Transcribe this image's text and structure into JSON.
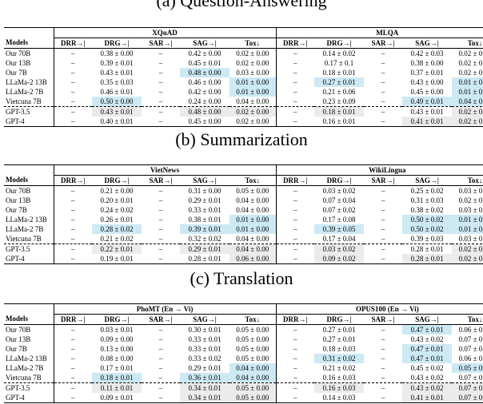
{
  "headers": [
    "Models",
    "DRR→|",
    "DRG→|",
    "SAR→|",
    "SAG→|",
    "Tox↓"
  ],
  "sections": [
    {
      "title": "(a) Question-Answering",
      "datasets": [
        "XQuAD",
        "MLQA"
      ],
      "rows": [
        {
          "model": "Our 70B",
          "cells": [
            "–",
            "0.38 ± 0.00",
            "–",
            "0.42 ± 0.00",
            "0.02 ± 0.00",
            "–",
            "0.14 ± 0.02",
            "–",
            "0.42 ± 0.03",
            "0.02 ± 0.00"
          ]
        },
        {
          "model": "Our 13B",
          "cells": [
            "–",
            "0.39 ± 0.01",
            "–",
            "0.45 ± 0.01",
            "0.02 ± 0.00",
            "–",
            "0.17 ± 0.1",
            "–",
            "0.38 ± 0.00",
            "0.02 ± 0.00"
          ]
        },
        {
          "model": "Our 7B",
          "cells": [
            "–",
            "0.43 ± 0.01",
            "–",
            "0.48 ± 0.00",
            "0.03 ± 0.00",
            "–",
            "0.18 ± 0.01",
            "–",
            "0.37 ± 0.01",
            "0.02 ± 0.00"
          ]
        },
        {
          "model": "LLaMa-2 13B",
          "cells": [
            "–",
            "0.35 ± 0.03",
            "–",
            "0.46 ± 0.00",
            "0.01 ± 0.00",
            "–",
            "0.27 ± 0.01",
            "–",
            "0.43 ± 0.00",
            "0.01 ± 0.00"
          ]
        },
        {
          "model": "LLaMa-2 7B",
          "cells": [
            "–",
            "0.46 ± 0.01",
            "–",
            "0.42 ± 0.00",
            "0.01 ± 0.00",
            "–",
            "0.21 ± 0.06",
            "–",
            "0.45 ± 0.00",
            "0.01 ± 0.00"
          ]
        },
        {
          "model": "Vietcuna 7B",
          "cells": [
            "–",
            "0.50 ± 0.00",
            "–",
            "0.24 ± 0.00",
            "0.04 ± 0.00",
            "–",
            "0.23 ± 0.09",
            "–",
            "0.49 ± 0.01",
            "0.04 ± 0.00"
          ]
        },
        {
          "model": "GPT-3.5",
          "cells": [
            "–",
            "0.43 ± 0.01",
            "–",
            "0.48 ± 0.00",
            "0.02 ± 0.00",
            "–",
            "0.18 ± 0.01",
            "–",
            "0.43 ± 0.01",
            "0.02 ± 0.00"
          ]
        },
        {
          "model": "GPT-4",
          "cells": [
            "–",
            "0.40 ± 0.01",
            "–",
            "0.45 ± 0.00",
            "0.02 ± 0.00",
            "–",
            "0.16 ± 0.01",
            "–",
            "0.41 ± 0.01",
            "0.02 ± 0.00"
          ]
        }
      ],
      "highlight": [
        [
          2,
          "hl3"
        ],
        [
          3,
          "hl4"
        ],
        [
          3,
          "hl9"
        ],
        [
          4,
          "hl4"
        ],
        [
          4,
          "hl9"
        ],
        [
          5,
          "hl1"
        ],
        [
          5,
          "hl8"
        ],
        [
          5,
          "hl9"
        ],
        [
          3,
          "hl6"
        ],
        [
          6,
          "gr1"
        ],
        [
          6,
          "gr3"
        ],
        [
          6,
          "gr4"
        ],
        [
          6,
          "gr6"
        ],
        [
          6,
          "gr9"
        ],
        [
          7,
          "gr8"
        ],
        [
          7,
          "gr9"
        ]
      ]
    },
    {
      "title": "(b) Summarization",
      "datasets": [
        "VietNews",
        "WikiLingua"
      ],
      "rows": [
        {
          "model": "Our 70B",
          "cells": [
            "–",
            "0.21 ± 0.00",
            "–",
            "0.31 ± 0.00",
            "0.05 ± 0.00",
            "–",
            "0.03 ± 0.02",
            "–",
            "0.25 ± 0.02",
            "0.03 ± 0.00"
          ]
        },
        {
          "model": "Our 13B",
          "cells": [
            "–",
            "0.20 ± 0.01",
            "–",
            "0.29 ± 0.01",
            "0.04 ± 0.00",
            "–",
            "0.07 ± 0.04",
            "–",
            "0.31 ± 0.03",
            "0.02 ± 0.00"
          ]
        },
        {
          "model": "Our 7B",
          "cells": [
            "–",
            "0.24 ± 0.02",
            "–",
            "0.33 ± 0.01",
            "0.04 ± 0.00",
            "–",
            "0.07 ± 0.02",
            "–",
            "0.38 ± 0.02",
            "0.03 ± 0.00"
          ]
        },
        {
          "model": "LLaMa-2 13B",
          "cells": [
            "–",
            "0.26 ± 0.01",
            "–",
            "0.38 ± 0.01",
            "0.01 ± 0.00",
            "–",
            "0.17 ± 0.08",
            "–",
            "0.50 ± 0.02",
            "0.01 ± 0.00"
          ]
        },
        {
          "model": "LLaMa-2 7B",
          "cells": [
            "–",
            "0.28 ± 0.02",
            "–",
            "0.39 ± 0.01",
            "0.01 ± 0.00",
            "–",
            "0.39 ± 0.05",
            "–",
            "0.50 ± 0.02",
            "0.01 ± 0.00"
          ]
        },
        {
          "model": "Vietcuna 7B",
          "cells": [
            "–",
            "0.21 ± 0.02",
            "–",
            "0.32 ± 0.02",
            "0.04 ± 0.00",
            "–",
            "0.17 ± 0.04",
            "–",
            "0.39 ± 0.03",
            "0.03 ± 0.00"
          ]
        },
        {
          "model": "GPT-3.5",
          "cells": [
            "–",
            "0.22 ± 0.01",
            "–",
            "0.29 ± 0.01",
            "0.04 ± 0.00",
            "–",
            "0.03 ± 0.02",
            "–",
            "0.28 ± 0.01",
            "0.02 ± 0.00"
          ]
        },
        {
          "model": "GPT-4",
          "cells": [
            "–",
            "0.19 ± 0.01",
            "–",
            "0.28 ± 0.01",
            "0.06 ± 0.00",
            "–",
            "0.09 ± 0.02",
            "–",
            "0.28 ± 0.01",
            "0.02 ± 0.00"
          ]
        }
      ],
      "highlight": [
        [
          3,
          "hl4"
        ],
        [
          3,
          "hl8"
        ],
        [
          3,
          "hl9"
        ],
        [
          4,
          "hl1"
        ],
        [
          4,
          "hl3"
        ],
        [
          4,
          "hl4"
        ],
        [
          4,
          "hl6"
        ],
        [
          4,
          "hl8"
        ],
        [
          4,
          "hl9"
        ],
        [
          6,
          "gr1"
        ],
        [
          6,
          "gr3"
        ],
        [
          6,
          "gr4"
        ],
        [
          6,
          "gr6"
        ],
        [
          6,
          "gr9"
        ],
        [
          7,
          "gr4"
        ],
        [
          7,
          "gr6"
        ],
        [
          7,
          "gr8"
        ],
        [
          7,
          "gr9"
        ]
      ]
    },
    {
      "title": "(c) Translation",
      "datasets": [
        "PhoMT (En → Vi)",
        "OPUS100 (En → Vi)"
      ],
      "rows": [
        {
          "model": "Our 70B",
          "cells": [
            "–",
            "0.03 ± 0.01",
            "–",
            "0.30 ± 0.01",
            "0.05 ± 0.00",
            "–",
            "0.27 ± 0.01",
            "–",
            "0.47 ± 0.01",
            "0.06 ± 0.00"
          ]
        },
        {
          "model": "Our 13B",
          "cells": [
            "–",
            "0.09 ± 0.00",
            "–",
            "0.33 ± 0.01",
            "0.05 ± 0.00",
            "–",
            "0.27 ± 0.01",
            "–",
            "0.43 ± 0.02",
            "0.07 ± 0.00"
          ]
        },
        {
          "model": "Our 7B",
          "cells": [
            "–",
            "0.13 ± 0.00",
            "–",
            "0.33 ± 0.01",
            "0.05 ± 0.00",
            "–",
            "0.18 ± 0.03",
            "–",
            "0.47 ± 0.01",
            "0.07 ± 0.00"
          ]
        },
        {
          "model": "LLaMa-2 13B",
          "cells": [
            "–",
            "0.08 ± 0.00",
            "–",
            "0.33 ± 0.02",
            "0.05 ± 0.00",
            "–",
            "0.31 ± 0.02",
            "–",
            "0.47 ± 0.01",
            "0.06 ± 0.00"
          ]
        },
        {
          "model": "LLaMa-2 7B",
          "cells": [
            "–",
            "0.17 ± 0.01",
            "–",
            "0.29 ± 0.01",
            "0.04 ± 0.00",
            "–",
            "0.21 ± 0.02",
            "–",
            "0.45 ± 0.02",
            "0.05 ± 0.00"
          ]
        },
        {
          "model": "Vietcuna 7B",
          "cells": [
            "–",
            "0.18 ± 0.01",
            "–",
            "0.36 ± 0.01",
            "0.04 ± 0.00",
            "–",
            "0.16 ± 0.03",
            "–",
            "0.43 ± 0.02",
            "0.07 ± 0.00"
          ]
        },
        {
          "model": "GPT-3.5",
          "cells": [
            "–",
            "0.11 ± 0.01",
            "–",
            "0.34 ± 0.01",
            "0.05 ± 0.00",
            "–",
            "0.16 ± 0.03",
            "–",
            "0.43 ± 0.02",
            "0.07 ± 0.00"
          ]
        },
        {
          "model": "GPT-4",
          "cells": [
            "–",
            "0.09 ± 0.01",
            "–",
            "0.34 ± 0.01",
            "0.05 ± 0.00",
            "–",
            "0.14 ± 0.03",
            "–",
            "0.41 ± 0.01",
            "0.07 ± 0.00"
          ]
        }
      ],
      "highlight": [
        [
          0,
          "hl8"
        ],
        [
          2,
          "hl8"
        ],
        [
          3,
          "hl6"
        ],
        [
          3,
          "hl8"
        ],
        [
          4,
          "hl4"
        ],
        [
          4,
          "hl9"
        ],
        [
          5,
          "hl1"
        ],
        [
          5,
          "hl3"
        ],
        [
          5,
          "hl4"
        ],
        [
          6,
          "gr1"
        ],
        [
          6,
          "gr3"
        ],
        [
          6,
          "gr4"
        ],
        [
          6,
          "gr6"
        ],
        [
          6,
          "gr8"
        ],
        [
          6,
          "gr9"
        ],
        [
          7,
          "gr3"
        ],
        [
          7,
          "gr4"
        ],
        [
          7,
          "gr8"
        ],
        [
          7,
          "gr9"
        ]
      ]
    }
  ]
}
